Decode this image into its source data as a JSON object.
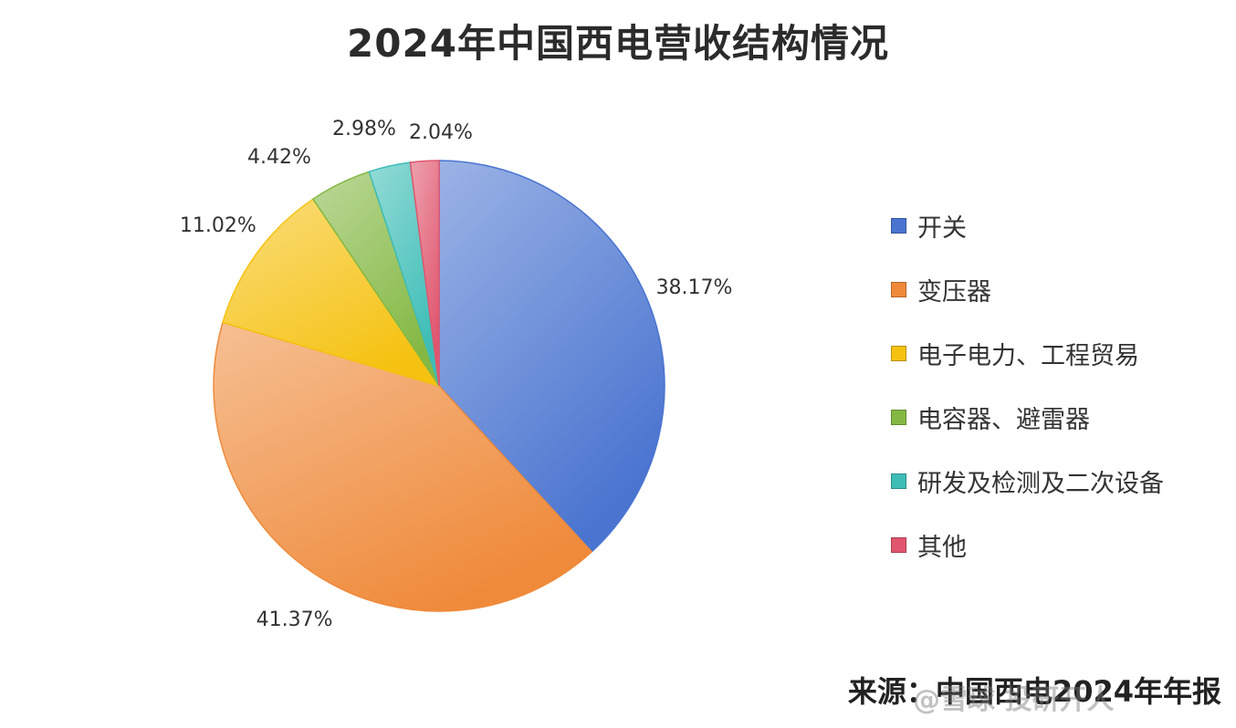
{
  "chart_data": {
    "type": "pie",
    "title": "2024年中国西电营收结构情况",
    "categories": [
      "开关",
      "变压器",
      "电子电力、工程贸易",
      "电容器、避雷器",
      "研发及检测及二次设备",
      "其他"
    ],
    "values": [
      38.17,
      41.37,
      11.02,
      4.42,
      2.98,
      2.04
    ],
    "value_labels": [
      "38.17%",
      "41.37%",
      "11.02%",
      "4.42%",
      "2.98%",
      "2.04%"
    ],
    "colors": [
      "#4a74d0",
      "#ef8a3a",
      "#f5c211",
      "#84b843",
      "#3dbdb6",
      "#e0566e"
    ],
    "start_angle_deg": 0,
    "direction": "clockwise",
    "legend_position": "right"
  },
  "source_note": "来源：中国西电2024年年报",
  "watermark": "@雪球 投研开人"
}
